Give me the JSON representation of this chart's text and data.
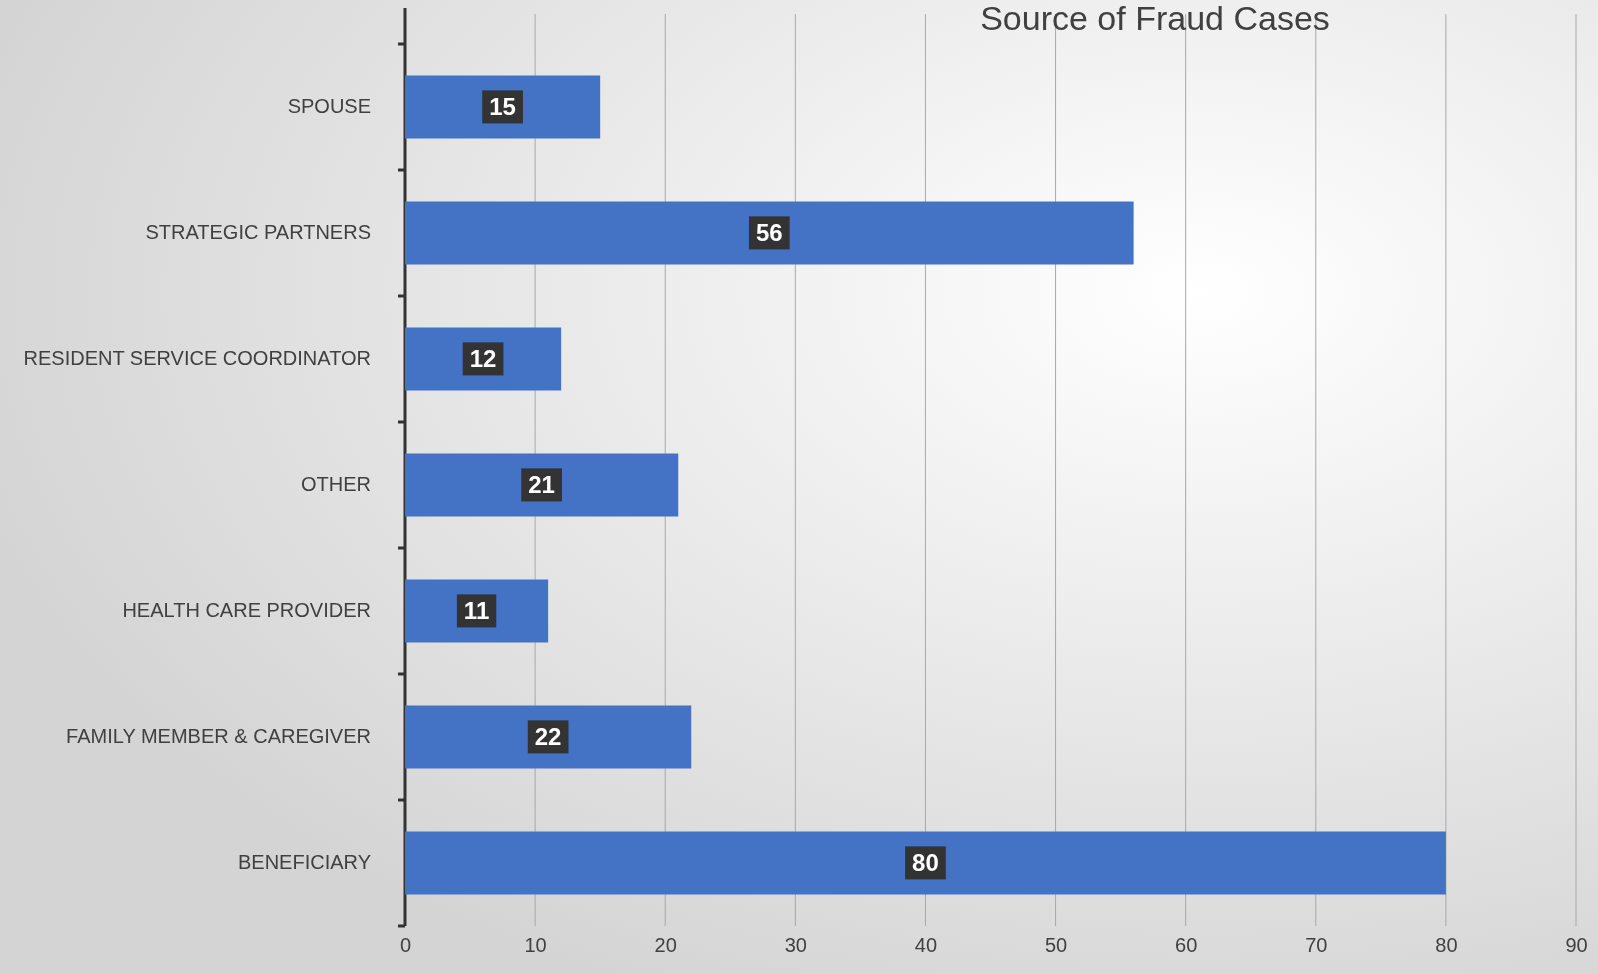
{
  "chart_data": {
    "type": "bar",
    "orientation": "horizontal",
    "title": "Source of Fraud Cases",
    "categories": [
      "SPOUSE",
      "STRATEGIC PARTNERS",
      "RESIDENT SERVICE COORDINATOR",
      "OTHER",
      "HEALTH CARE PROVIDER",
      "FAMILY MEMBER & CAREGIVER",
      "BENEFICIARY"
    ],
    "values": [
      15,
      56,
      12,
      21,
      11,
      22,
      80
    ],
    "color": "#4472c4",
    "xlim": [
      0,
      90
    ],
    "xticks": [
      0,
      10,
      20,
      30,
      40,
      50,
      60,
      70,
      80,
      90
    ],
    "grid": "x",
    "data_labels": true
  }
}
